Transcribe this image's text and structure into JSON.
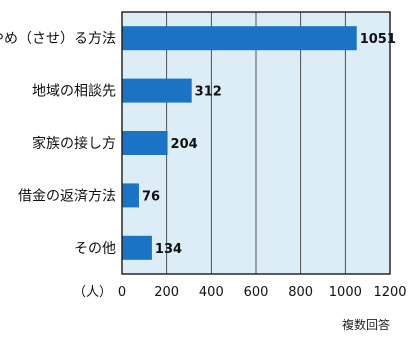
{
  "chart_data": {
    "type": "bar",
    "orientation": "horizontal",
    "categories": [
      "やめ（させ）る方法",
      "地域の相談先",
      "家族の接し方",
      "借金の返済方法",
      "その他"
    ],
    "values": [
      1051,
      312,
      204,
      76,
      134
    ],
    "data_labels": [
      "1051",
      "312",
      "204",
      "76",
      "134"
    ],
    "xlim": [
      0,
      1200
    ],
    "xticks": [
      0,
      200,
      400,
      600,
      800,
      1000,
      1200
    ],
    "xtick_labels": [
      "0",
      "200",
      "400",
      "600",
      "800",
      "1000",
      "1200"
    ],
    "unit_label": "（人）",
    "grid": true,
    "colors": {
      "bar": "#1a73c4",
      "plot_background": "#dcedf7",
      "grid": "#2a2a2a",
      "border": "#1a1a1a"
    }
  },
  "footnote": "複数回答"
}
